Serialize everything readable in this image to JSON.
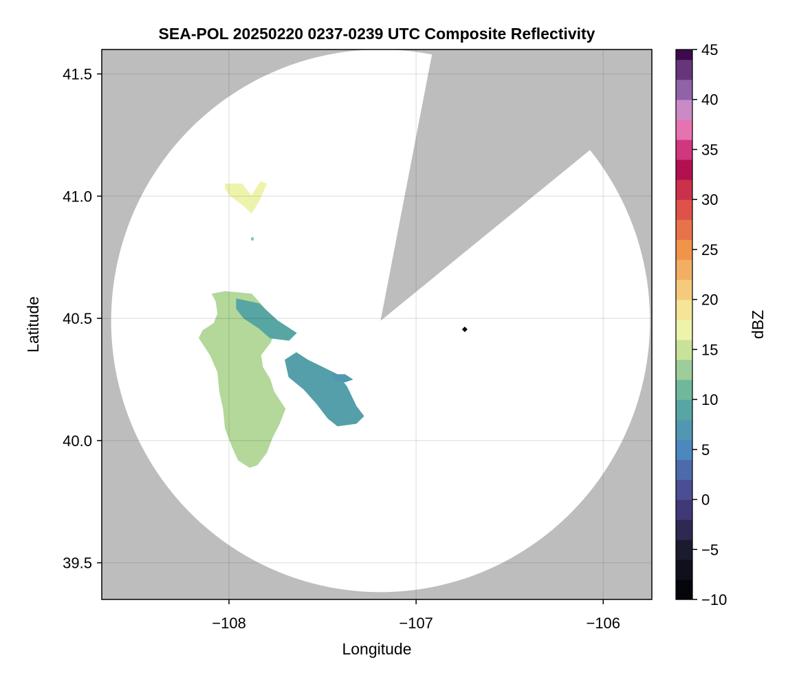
{
  "chart_data": {
    "type": "heatmap",
    "title": "SEA-POL 20250220 0237-0239 UTC Composite Reflectivity",
    "xlabel": "Longitude",
    "ylabel": "Latitude",
    "xlim": [
      -108.68,
      -105.74
    ],
    "ylim": [
      39.35,
      41.6
    ],
    "x_ticks": [
      -108,
      -107,
      -106
    ],
    "x_tick_labels": [
      "−108",
      "−107",
      "−106"
    ],
    "y_ticks": [
      39.5,
      40.0,
      40.5,
      41.0,
      41.5
    ],
    "y_tick_labels": [
      "39.5",
      "40.0",
      "40.5",
      "41.0",
      "41.5"
    ],
    "grid": true,
    "background_color": "#bdbdbd",
    "radar_site": {
      "lon": -107.19,
      "lat": 40.49
    },
    "radar_range_circle": {
      "center_lon": -107.19,
      "center_lat": 40.49,
      "extent_lon": 1.44,
      "extent_lat": 1.11
    },
    "blocked_sector": {
      "start_bearing_deg": 11,
      "end_bearing_deg": 51
    },
    "marker": {
      "lon": -106.74,
      "lat": 40.455,
      "shape": "diamond",
      "color": "#000000"
    },
    "echo_regions": [
      {
        "name_hint": "northern patch",
        "mean_dbz": 17,
        "polygon": [
          [
            -108.02,
            41.05
          ],
          [
            -107.93,
            41.05
          ],
          [
            -107.88,
            41.0
          ],
          [
            -107.83,
            41.06
          ],
          [
            -107.8,
            41.05
          ],
          [
            -107.84,
            40.98
          ],
          [
            -107.88,
            40.93
          ],
          [
            -107.92,
            40.96
          ],
          [
            -107.99,
            41.0
          ],
          [
            -108.02,
            41.03
          ]
        ]
      },
      {
        "name_hint": "western band",
        "mean_dbz": 14,
        "polygon": [
          [
            -108.09,
            40.6
          ],
          [
            -108.02,
            40.61
          ],
          [
            -107.88,
            40.6
          ],
          [
            -107.82,
            40.55
          ],
          [
            -107.77,
            40.5
          ],
          [
            -107.75,
            40.45
          ],
          [
            -107.78,
            40.4
          ],
          [
            -107.83,
            40.35
          ],
          [
            -107.82,
            40.3
          ],
          [
            -107.78,
            40.25
          ],
          [
            -107.76,
            40.2
          ],
          [
            -107.7,
            40.13
          ],
          [
            -107.73,
            40.07
          ],
          [
            -107.77,
            40.01
          ],
          [
            -107.8,
            39.95
          ],
          [
            -107.85,
            39.9
          ],
          [
            -107.89,
            39.89
          ],
          [
            -107.95,
            39.92
          ],
          [
            -107.98,
            39.97
          ],
          [
            -108.02,
            40.05
          ],
          [
            -108.03,
            40.13
          ],
          [
            -108.05,
            40.2
          ],
          [
            -108.06,
            40.28
          ],
          [
            -108.1,
            40.35
          ],
          [
            -108.16,
            40.42
          ],
          [
            -108.14,
            40.45
          ],
          [
            -108.08,
            40.48
          ],
          [
            -108.06,
            40.52
          ],
          [
            -108.07,
            40.57
          ]
        ]
      },
      {
        "name_hint": "upper western edge",
        "mean_dbz": 9,
        "polygon": [
          [
            -107.96,
            40.58
          ],
          [
            -107.84,
            40.56
          ],
          [
            -107.74,
            40.49
          ],
          [
            -107.64,
            40.44
          ],
          [
            -107.68,
            40.41
          ],
          [
            -107.78,
            40.42
          ],
          [
            -107.84,
            40.46
          ],
          [
            -107.92,
            40.5
          ],
          [
            -107.96,
            40.54
          ]
        ]
      },
      {
        "name_hint": "eastern band",
        "mean_dbz": 8,
        "polygon": [
          [
            -107.7,
            40.33
          ],
          [
            -107.64,
            40.36
          ],
          [
            -107.58,
            40.33
          ],
          [
            -107.5,
            40.3
          ],
          [
            -107.42,
            40.27
          ],
          [
            -107.37,
            40.22
          ],
          [
            -107.32,
            40.14
          ],
          [
            -107.28,
            40.1
          ],
          [
            -107.32,
            40.07
          ],
          [
            -107.42,
            40.06
          ],
          [
            -107.47,
            40.09
          ],
          [
            -107.53,
            40.15
          ],
          [
            -107.6,
            40.21
          ],
          [
            -107.68,
            40.26
          ]
        ]
      },
      {
        "name_hint": "eastern band tail",
        "mean_dbz": 7,
        "polygon": [
          [
            -107.45,
            40.27
          ],
          [
            -107.38,
            40.27
          ],
          [
            -107.34,
            40.25
          ],
          [
            -107.38,
            40.24
          ],
          [
            -107.44,
            40.25
          ]
        ]
      },
      {
        "name_hint": "small echo",
        "mean_dbz": 12,
        "polygon": [
          [
            -107.88,
            40.83
          ],
          [
            -107.87,
            40.83
          ],
          [
            -107.87,
            40.82
          ],
          [
            -107.88,
            40.82
          ]
        ]
      }
    ],
    "colorbar": {
      "label": "dBZ",
      "min": -10,
      "max": 45,
      "step": 2,
      "ticks": [
        -10,
        -5,
        0,
        5,
        10,
        15,
        20,
        25,
        30,
        35,
        40,
        45
      ],
      "tick_labels": [
        "−10",
        "−5",
        "0",
        "5",
        "10",
        "15",
        "20",
        "25",
        "30",
        "35",
        "40",
        "45"
      ],
      "colormap_stops": [
        {
          "value": -10,
          "color": "#000004"
        },
        {
          "value": -5,
          "color": "#1a1b2e"
        },
        {
          "value": 0,
          "color": "#4b3f8a"
        },
        {
          "value": 5,
          "color": "#4c88c0"
        },
        {
          "value": 10,
          "color": "#5aae9c"
        },
        {
          "value": 15,
          "color": "#c9e29a"
        },
        {
          "value": 17.5,
          "color": "#f7f7b0"
        },
        {
          "value": 20,
          "color": "#f6d888"
        },
        {
          "value": 25,
          "color": "#f0944c"
        },
        {
          "value": 30,
          "color": "#d9424a"
        },
        {
          "value": 33,
          "color": "#b3104f"
        },
        {
          "value": 36,
          "color": "#df4a96"
        },
        {
          "value": 38,
          "color": "#ec9ccb"
        },
        {
          "value": 40,
          "color": "#a578bf"
        },
        {
          "value": 45,
          "color": "#3d0a4c"
        }
      ]
    }
  }
}
